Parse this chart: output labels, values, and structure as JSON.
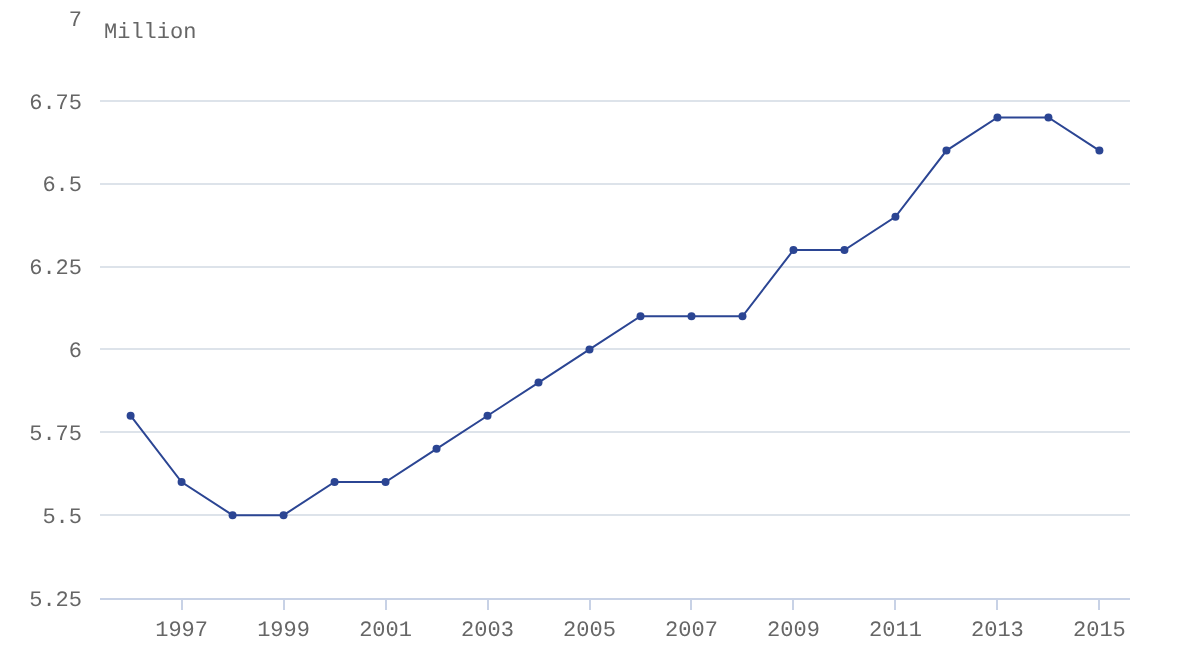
{
  "chart_data": {
    "type": "line",
    "ylabel": "Million",
    "x": [
      1996,
      1997,
      1998,
      1999,
      2000,
      2001,
      2002,
      2003,
      2004,
      2005,
      2006,
      2007,
      2008,
      2009,
      2010,
      2011,
      2012,
      2013,
      2014,
      2015
    ],
    "series": [
      {
        "color": "#2b4593",
        "values": [
          5.8,
          5.6,
          5.5,
          5.5,
          5.6,
          5.6,
          5.7,
          5.8,
          5.9,
          6.0,
          6.1,
          6.1,
          6.1,
          6.3,
          6.3,
          6.4,
          6.6,
          6.7,
          6.7,
          6.6
        ]
      }
    ],
    "xlim": [
      1995.4,
      2015.6
    ],
    "xticks": [
      1997,
      1999,
      2001,
      2003,
      2005,
      2007,
      2009,
      2011,
      2013,
      2015
    ],
    "ylim": [
      5.25,
      7
    ],
    "yticks": [
      5.25,
      5.5,
      5.75,
      6,
      6.25,
      6.5,
      6.75,
      7
    ],
    "grid": "y",
    "marker": "circle",
    "line_style": "solid"
  }
}
